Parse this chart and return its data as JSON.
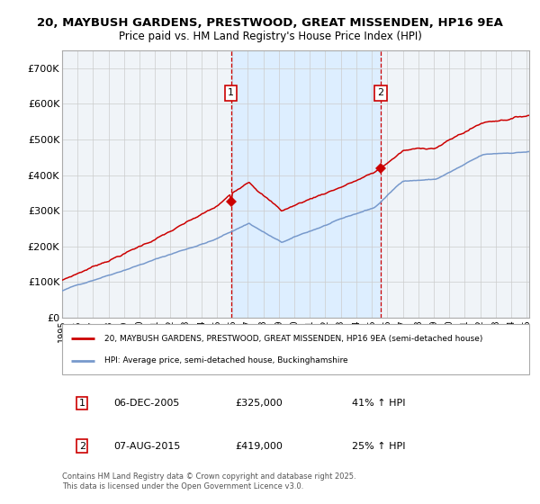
{
  "title_line1": "20, MAYBUSH GARDENS, PRESTWOOD, GREAT MISSENDEN, HP16 9EA",
  "title_line2": "Price paid vs. HM Land Registry's House Price Index (HPI)",
  "legend_label_red": "20, MAYBUSH GARDENS, PRESTWOOD, GREAT MISSENDEN, HP16 9EA (semi-detached house)",
  "legend_label_blue": "HPI: Average price, semi-detached house, Buckinghamshire",
  "transaction1_date": "06-DEC-2005",
  "transaction1_price": 325000,
  "transaction1_pct": "41% ↑ HPI",
  "transaction2_date": "07-AUG-2015",
  "transaction2_price": 419000,
  "transaction2_pct": "25% ↑ HPI",
  "footnote": "Contains HM Land Registry data © Crown copyright and database right 2025.\nThis data is licensed under the Open Government Licence v3.0.",
  "background_color": "#ffffff",
  "plot_bg_color": "#f0f4f8",
  "shade_color": "#ddeeff",
  "grid_color": "#cccccc",
  "red_color": "#cc0000",
  "blue_color": "#7799cc",
  "vline_color": "#cc0000",
  "ylim": [
    0,
    750000
  ],
  "yticks": [
    0,
    100000,
    200000,
    300000,
    400000,
    500000,
    600000,
    700000
  ],
  "ytick_labels": [
    "£0",
    "£100K",
    "£200K",
    "£300K",
    "£400K",
    "£500K",
    "£600K",
    "£700K"
  ]
}
